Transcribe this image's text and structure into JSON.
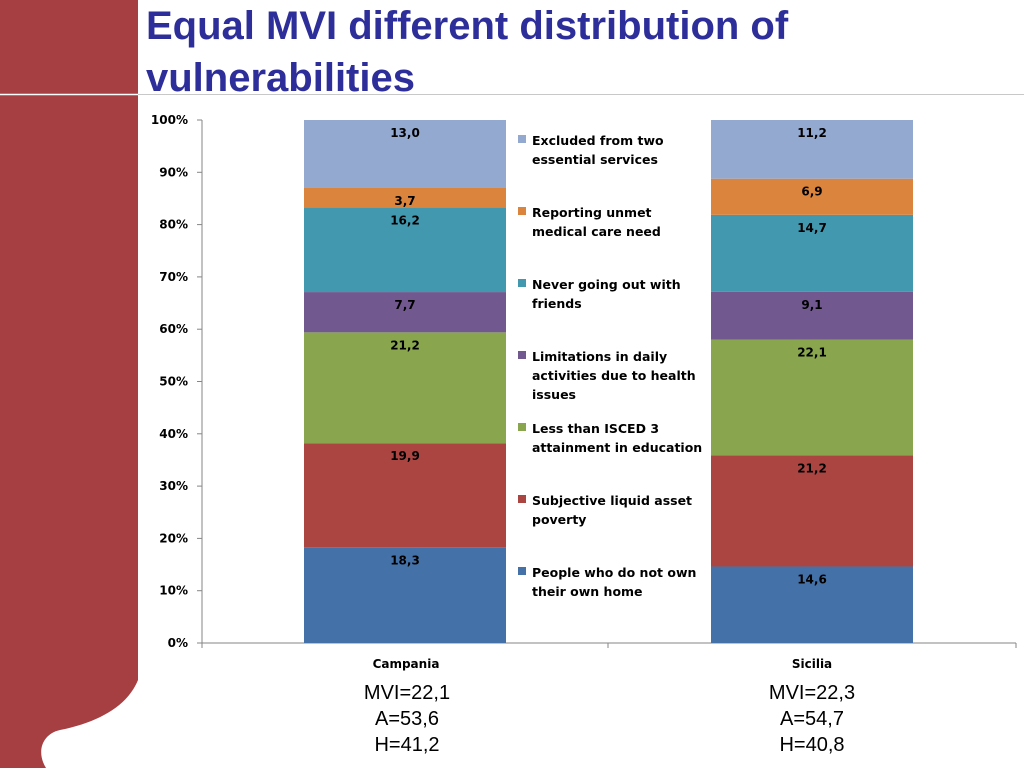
{
  "slide": {
    "title": "Equal MVI different distribution of vulnerabilities"
  },
  "chart_data": {
    "type": "bar",
    "stacked": true,
    "normalized_percent": true,
    "categories": [
      "Campania",
      "Sicilia"
    ],
    "y_ticks": [
      "0%",
      "10%",
      "20%",
      "30%",
      "40%",
      "50%",
      "60%",
      "70%",
      "80%",
      "90%",
      "100%"
    ],
    "ylim": [
      0,
      100
    ],
    "grid": false,
    "legend_position": "middle",
    "series": [
      {
        "name": "People who do not own their own home",
        "values": [
          18.3,
          14.6
        ],
        "labels": [
          "18,3",
          "14,6"
        ],
        "color": "#4472a8"
      },
      {
        "name": "Subjective liquid asset poverty",
        "values": [
          19.9,
          21.2
        ],
        "labels": [
          "19,9",
          "21,2"
        ],
        "color": "#ab4542"
      },
      {
        "name": "Less than ISCED 3 attainment in education",
        "values": [
          21.2,
          22.1
        ],
        "labels": [
          "21,2",
          "22,1"
        ],
        "color": "#89a54e"
      },
      {
        "name": "Limitations in daily activities due to health issues",
        "values": [
          7.7,
          9.1
        ],
        "labels": [
          "7,7",
          "9,1"
        ],
        "color": "#71588f"
      },
      {
        "name": "Never going out with friends",
        "values": [
          16.2,
          14.7
        ],
        "labels": [
          "16,2",
          "14,7"
        ],
        "color": "#4298af"
      },
      {
        "name": "Reporting unmet medical care need",
        "values": [
          3.7,
          6.9
        ],
        "labels": [
          "3,7",
          "6,9"
        ],
        "color": "#db843d"
      },
      {
        "name": "Excluded from two essential services",
        "values": [
          13.0,
          11.2
        ],
        "labels": [
          "13,0",
          "11,2"
        ],
        "color": "#93a9cf"
      }
    ]
  },
  "stats": [
    {
      "mvi": "MVI=22,1",
      "a": "A=53,6",
      "h": "H=41,2"
    },
    {
      "mvi": "MVI=22,3",
      "a": "A=54,7",
      "h": "H=40,8"
    }
  ],
  "colors": {
    "deco_red": "#a63f42",
    "title": "#2e2e9a",
    "axis": "#868686"
  }
}
